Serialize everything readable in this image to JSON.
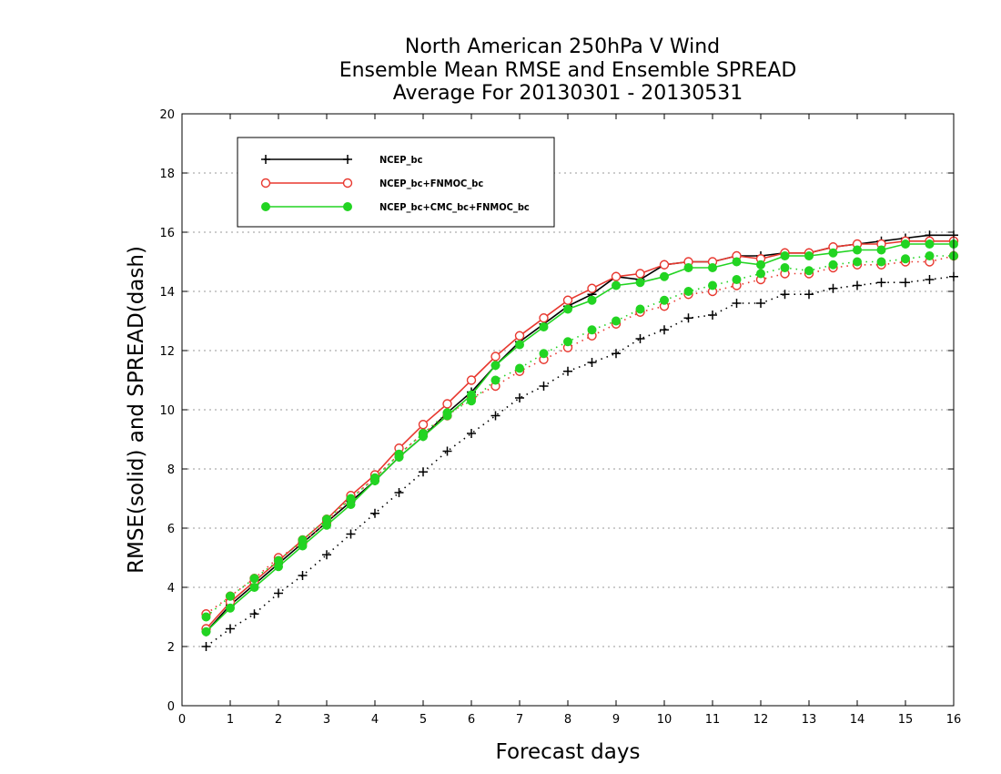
{
  "chart_data": {
    "type": "line",
    "title_lines": [
      "North American 250hPa V Wind",
      "Ensemble Mean RMSE and Ensemble SPREAD",
      "Average For 20130301 - 20130531"
    ],
    "xlabel": "Forecast days",
    "ylabel": "RMSE(solid) and SPREAD(dash)",
    "xlim": [
      0,
      16
    ],
    "ylim": [
      0,
      20
    ],
    "x_ticks": [
      0,
      1,
      2,
      3,
      4,
      5,
      6,
      7,
      8,
      9,
      10,
      11,
      12,
      13,
      14,
      15,
      16
    ],
    "y_ticks": [
      0,
      2,
      4,
      6,
      8,
      10,
      12,
      14,
      16,
      18,
      20
    ],
    "grid": "horizontal dotted",
    "legend_position": "top-left",
    "x": [
      0.5,
      1,
      1.5,
      2,
      2.5,
      3,
      3.5,
      4,
      4.5,
      5,
      5.5,
      6,
      6.5,
      7,
      7.5,
      8,
      8.5,
      9,
      9.5,
      10,
      10.5,
      11,
      11.5,
      12,
      12.5,
      13,
      13.5,
      14,
      14.5,
      15,
      15.5,
      16
    ],
    "series": [
      {
        "name": "NCEP_bc",
        "color": "#000000",
        "marker": "plus",
        "rmse": [
          2.5,
          3.4,
          4.1,
          4.8,
          5.5,
          6.2,
          6.9,
          7.6,
          8.4,
          9.1,
          9.9,
          10.6,
          11.5,
          12.3,
          12.9,
          13.5,
          13.9,
          14.5,
          14.4,
          14.9,
          15.0,
          15.0,
          15.2,
          15.2,
          15.3,
          15.3,
          15.5,
          15.6,
          15.7,
          15.8,
          15.9,
          15.9
        ],
        "spread": [
          2.0,
          2.6,
          3.1,
          3.8,
          4.4,
          5.1,
          5.8,
          6.5,
          7.2,
          7.9,
          8.6,
          9.2,
          9.8,
          10.4,
          10.8,
          11.3,
          11.6,
          11.9,
          12.4,
          12.7,
          13.1,
          13.2,
          13.6,
          13.6,
          13.9,
          13.9,
          14.1,
          14.2,
          14.3,
          14.3,
          14.4,
          14.5
        ]
      },
      {
        "name": "NCEP_bc+FNMOC_bc",
        "color": "#e8382f",
        "marker": "open-circle",
        "rmse": [
          2.6,
          3.5,
          4.2,
          4.9,
          5.6,
          6.3,
          7.1,
          7.8,
          8.7,
          9.5,
          10.2,
          11.0,
          11.8,
          12.5,
          13.1,
          13.7,
          14.1,
          14.5,
          14.6,
          14.9,
          15.0,
          15.0,
          15.2,
          15.1,
          15.3,
          15.3,
          15.5,
          15.6,
          15.6,
          15.7,
          15.7,
          15.7
        ],
        "spread": [
          3.1,
          3.7,
          4.3,
          5.0,
          5.5,
          6.2,
          7.0,
          7.7,
          8.5,
          9.2,
          9.8,
          10.4,
          10.8,
          11.3,
          11.7,
          12.1,
          12.5,
          12.9,
          13.3,
          13.5,
          13.9,
          14.0,
          14.2,
          14.4,
          14.6,
          14.6,
          14.8,
          14.9,
          14.9,
          15.0,
          15.0,
          15.2
        ]
      },
      {
        "name": "NCEP_bc+CMC_bc+FNMOC_bc",
        "color": "#22d422",
        "marker": "filled-circle",
        "rmse": [
          2.5,
          3.3,
          4.0,
          4.7,
          5.4,
          6.1,
          6.8,
          7.6,
          8.4,
          9.1,
          9.8,
          10.5,
          11.5,
          12.2,
          12.8,
          13.4,
          13.7,
          14.2,
          14.3,
          14.5,
          14.8,
          14.8,
          15.0,
          14.9,
          15.2,
          15.2,
          15.3,
          15.4,
          15.4,
          15.6,
          15.6,
          15.6
        ],
        "spread": [
          3.0,
          3.7,
          4.3,
          4.9,
          5.6,
          6.3,
          7.0,
          7.7,
          8.5,
          9.2,
          9.9,
          10.3,
          11.0,
          11.4,
          11.9,
          12.3,
          12.7,
          13.0,
          13.4,
          13.7,
          14.0,
          14.2,
          14.4,
          14.6,
          14.8,
          14.7,
          14.9,
          15.0,
          15.0,
          15.1,
          15.2,
          15.2
        ]
      }
    ]
  }
}
